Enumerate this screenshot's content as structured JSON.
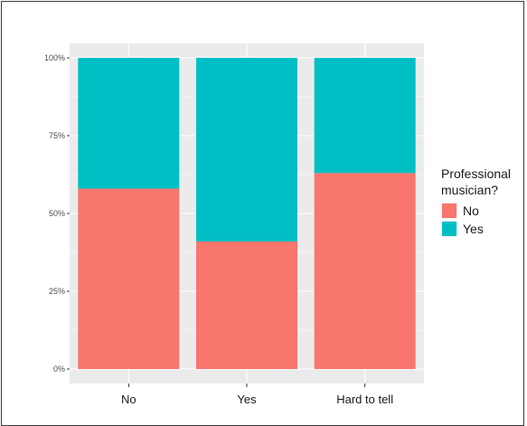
{
  "chart_data": {
    "type": "bar",
    "stacked": true,
    "title": "",
    "xlabel": "",
    "ylabel": "",
    "categories": [
      "No",
      "Yes",
      "Hard to tell"
    ],
    "series": [
      {
        "name": "No",
        "values": [
          58,
          41,
          63
        ],
        "color": "#f8766d"
      },
      {
        "name": "Yes",
        "values": [
          42,
          59,
          37
        ],
        "color": "#00bfc4"
      }
    ],
    "ylim": [
      0,
      100
    ],
    "yticks": [
      0,
      25,
      50,
      75,
      100
    ],
    "ytick_labels": [
      "0%",
      "25%",
      "50%",
      "75%",
      "100%"
    ],
    "grid": true,
    "legend": {
      "title_line1": "Professional",
      "title_line2": "musician?",
      "placement": "right"
    },
    "panel_color": "#ebebeb",
    "grid_color": "#ffffff"
  }
}
